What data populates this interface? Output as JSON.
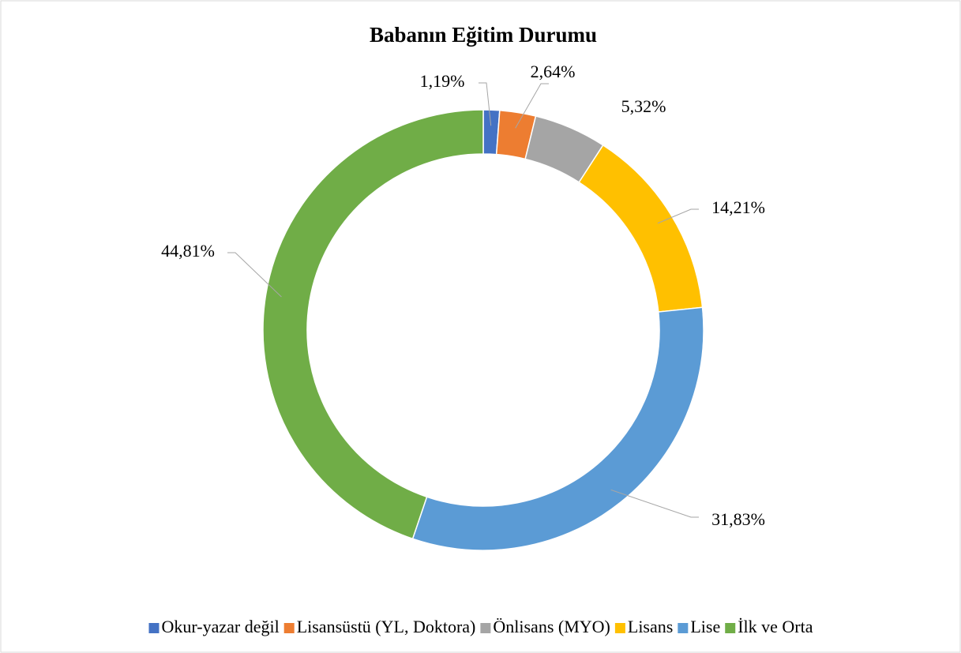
{
  "chart_data": {
    "type": "donut",
    "title": "Babanın Eğitim Durumu",
    "categories": [
      "Okur-yazar değil",
      "Lisansüstü (YL, Doktora)",
      "Önlisans (MYO)",
      "Lisans",
      "Lise",
      "İlk ve Orta"
    ],
    "values": [
      1.19,
      2.64,
      5.32,
      14.21,
      31.83,
      44.81
    ],
    "value_labels": [
      "1,19%",
      "2,64%",
      "5,32%",
      "14,21%",
      "31,83%",
      "44,81%"
    ],
    "colors": [
      "#4472c4",
      "#ed7d31",
      "#a5a5a5",
      "#ffc000",
      "#5b9bd5",
      "#70ad47"
    ],
    "legend": "bottom"
  }
}
